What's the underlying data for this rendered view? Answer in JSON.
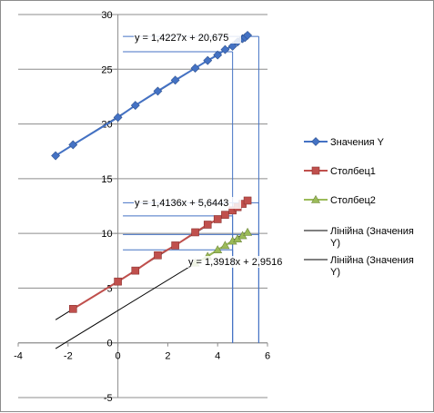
{
  "chart_data": {
    "type": "scatter",
    "title": "",
    "xlabel": "",
    "ylabel": "",
    "xlim": [
      -4,
      6
    ],
    "ylim": [
      -5,
      30
    ],
    "x_ticks": [
      "-4",
      "-2",
      "0",
      "2",
      "4",
      "6"
    ],
    "y_ticks": [
      "-5",
      "0",
      "5",
      "10",
      "15",
      "20",
      "25",
      "30"
    ],
    "grid": "horizontal",
    "legend": "right",
    "series": [
      {
        "name": "Значения Y",
        "marker": "diamond",
        "color": "#4472c4",
        "points": [
          [
            -2.5,
            17.1
          ],
          [
            -1.8,
            18.1
          ],
          [
            0.0,
            20.6
          ],
          [
            0.7,
            21.7
          ],
          [
            1.6,
            23.0
          ],
          [
            2.3,
            24.0
          ],
          [
            3.1,
            25.1
          ],
          [
            3.6,
            25.8
          ],
          [
            4.0,
            26.3
          ],
          [
            4.3,
            26.8
          ],
          [
            4.6,
            27.1
          ],
          [
            4.8,
            27.5
          ],
          [
            5.0,
            27.8
          ],
          [
            5.1,
            27.9
          ],
          [
            5.2,
            28.1
          ]
        ]
      },
      {
        "name": "Столбец1",
        "marker": "square",
        "color": "#c0504d",
        "points": [
          [
            -1.8,
            3.1
          ],
          [
            0.0,
            5.6
          ],
          [
            0.7,
            6.6
          ],
          [
            1.6,
            8.0
          ],
          [
            2.3,
            8.9
          ],
          [
            3.1,
            10.1
          ],
          [
            3.6,
            10.8
          ],
          [
            4.0,
            11.3
          ],
          [
            4.3,
            11.7
          ],
          [
            4.6,
            12.1
          ],
          [
            4.8,
            12.4
          ],
          [
            5.0,
            12.7
          ],
          [
            5.2,
            13.0
          ]
        ]
      },
      {
        "name": "Столбец2",
        "marker": "triangle",
        "color": "#9bbb59",
        "points": [
          [
            3.1,
            7.3
          ],
          [
            3.6,
            7.9
          ],
          [
            4.0,
            8.5
          ],
          [
            4.3,
            8.9
          ],
          [
            4.6,
            9.3
          ],
          [
            4.8,
            9.5
          ],
          [
            5.0,
            9.8
          ],
          [
            5.2,
            10.1
          ]
        ]
      }
    ],
    "trendlines": [
      {
        "name": "Лінійна (Значения Y)",
        "equation": "y = 1,4227x + 20,675",
        "slope": 1.4227,
        "intercept": 20.675,
        "x_range": [
          -2.5,
          5.2
        ]
      },
      {
        "name": "Лінійна (Значения Y)",
        "equation": "y = 1,4136x + 5,6443",
        "slope": 1.4136,
        "intercept": 5.6443,
        "x_range": [
          -2.5,
          5.2
        ]
      },
      {
        "name": "",
        "equation": "y = 1,3918x + 2,9516",
        "slope": 1.3918,
        "intercept": 2.9516,
        "x_range": [
          -2.5,
          5.2
        ]
      }
    ],
    "guide_lines": [
      {
        "color": "#4472c4",
        "x": 4.6,
        "y": 26.6
      },
      {
        "color": "#4472c4",
        "x": 5.65,
        "y": 28.0
      },
      {
        "color": "#4472c4",
        "x": 4.6,
        "y": 11.6
      },
      {
        "color": "#4472c4",
        "x": 5.65,
        "y": 12.8
      },
      {
        "color": "#4472c4",
        "x": 4.6,
        "y": 8.5
      },
      {
        "color": "#4472c4",
        "x": 5.65,
        "y": 9.9
      }
    ]
  }
}
